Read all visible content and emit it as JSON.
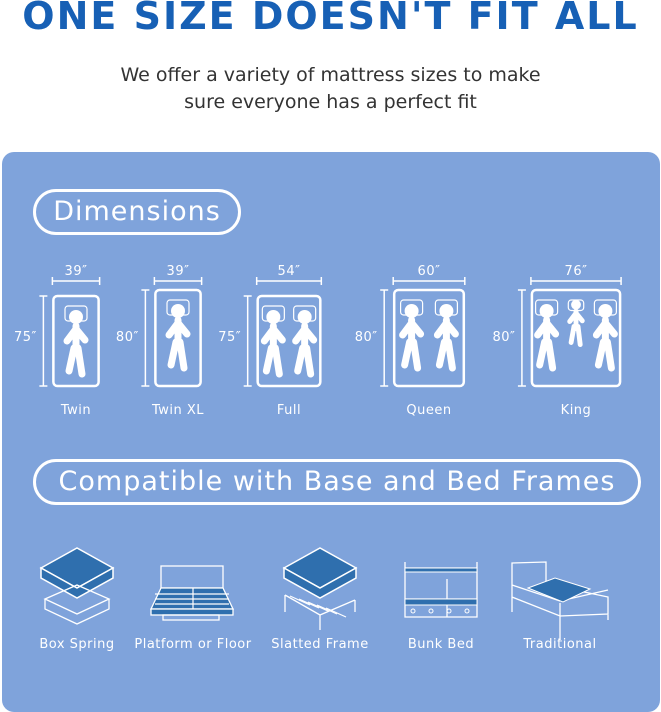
{
  "header": {
    "title": "ONE SIZE DOESN'T FIT ALL",
    "subtitle_line1": "We offer a variety of mattress sizes to make",
    "subtitle_line2": "sure everyone has a perfect fit"
  },
  "dimensions": {
    "heading": "Dimensions",
    "sizes": [
      {
        "name": "Twin",
        "width": "39″",
        "length": "75″",
        "people": 1
      },
      {
        "name": "Twin XL",
        "width": "39″",
        "length": "80″",
        "people": 1
      },
      {
        "name": "Full",
        "width": "54″",
        "length": "75″",
        "people": 2
      },
      {
        "name": "Queen",
        "width": "60″",
        "length": "80″",
        "people": 2
      },
      {
        "name": "King",
        "width": "76″",
        "length": "80″",
        "people": 3
      }
    ]
  },
  "compatibility": {
    "heading": "Compatible with Base and Bed Frames",
    "frames": [
      {
        "name": "Box Spring",
        "icon": "box-spring-icon"
      },
      {
        "name": "Platform or Floor",
        "icon": "platform-bed-icon"
      },
      {
        "name": "Slatted Frame",
        "icon": "slatted-frame-icon"
      },
      {
        "name": "Bunk Bed",
        "icon": "bunk-bed-icon"
      },
      {
        "name": "Traditional",
        "icon": "traditional-bed-icon"
      }
    ]
  },
  "colors": {
    "title": "#1760b5",
    "panel": "#7fa3db",
    "mattress": "#2f6fae"
  }
}
